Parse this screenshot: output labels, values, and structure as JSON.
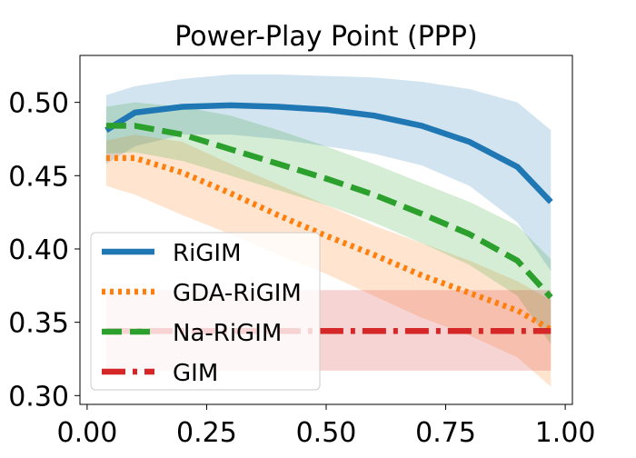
{
  "chart_data": {
    "type": "line",
    "title": "Power-Play Point (PPP)",
    "xlabel": "",
    "ylabel": "",
    "xlim": [
      -0.015,
      1.015
    ],
    "ylim": [
      0.294,
      0.532
    ],
    "x_ticks": [
      "0.00",
      "0.25",
      "0.50",
      "0.75",
      "1.00"
    ],
    "x_tick_values": [
      0.0,
      0.25,
      0.5,
      0.75,
      1.0
    ],
    "y_ticks": [
      "0.30",
      "0.35",
      "0.40",
      "0.45",
      "0.50"
    ],
    "y_tick_values": [
      0.3,
      0.35,
      0.4,
      0.45,
      0.5
    ],
    "grid": false,
    "legend_position": "lower-left",
    "x": [
      0.04,
      0.1,
      0.2,
      0.3,
      0.4,
      0.5,
      0.6,
      0.7,
      0.8,
      0.9,
      0.97
    ],
    "series": [
      {
        "name": "RiGIM",
        "color": "#1f77b4",
        "line_style": "solid",
        "values": [
          0.481,
          0.493,
          0.497,
          0.498,
          0.497,
          0.495,
          0.491,
          0.484,
          0.473,
          0.456,
          0.432
        ],
        "band_upper": [
          0.505,
          0.511,
          0.516,
          0.519,
          0.519,
          0.518,
          0.517,
          0.514,
          0.509,
          0.5,
          0.481
        ],
        "band_lower": [
          0.458,
          0.47,
          0.478,
          0.478,
          0.475,
          0.47,
          0.465,
          0.457,
          0.443,
          0.418,
          0.385
        ]
      },
      {
        "name": "GDA-RiGIM",
        "color": "#ff7f0e",
        "line_style": "dotted",
        "values": [
          0.462,
          0.462,
          0.452,
          0.438,
          0.423,
          0.409,
          0.396,
          0.382,
          0.37,
          0.358,
          0.345
        ],
        "band_upper": [
          0.474,
          0.478,
          0.473,
          0.458,
          0.444,
          0.43,
          0.416,
          0.404,
          0.392,
          0.378,
          0.365
        ],
        "band_lower": [
          0.443,
          0.437,
          0.423,
          0.41,
          0.396,
          0.383,
          0.368,
          0.353,
          0.341,
          0.326,
          0.306
        ]
      },
      {
        "name": "Na-RiGIM",
        "color": "#2ca02c",
        "line_style": "dashed",
        "values": [
          0.484,
          0.484,
          0.478,
          0.468,
          0.458,
          0.448,
          0.437,
          0.424,
          0.41,
          0.392,
          0.367
        ],
        "band_upper": [
          0.497,
          0.5,
          0.497,
          0.491,
          0.481,
          0.47,
          0.458,
          0.445,
          0.432,
          0.416,
          0.393
        ],
        "band_lower": [
          0.465,
          0.466,
          0.46,
          0.45,
          0.44,
          0.43,
          0.418,
          0.404,
          0.389,
          0.368,
          0.335
        ]
      },
      {
        "name": "GIM",
        "color": "#d62728",
        "line_style": "dashdot",
        "values": [
          0.344,
          0.344,
          0.344,
          0.344,
          0.344,
          0.344,
          0.344,
          0.344,
          0.344,
          0.344,
          0.344
        ],
        "band_upper": [
          0.372,
          0.372,
          0.372,
          0.372,
          0.372,
          0.372,
          0.372,
          0.372,
          0.372,
          0.372,
          0.372
        ],
        "band_lower": [
          0.317,
          0.317,
          0.317,
          0.317,
          0.317,
          0.317,
          0.317,
          0.317,
          0.317,
          0.317,
          0.317
        ]
      }
    ]
  }
}
